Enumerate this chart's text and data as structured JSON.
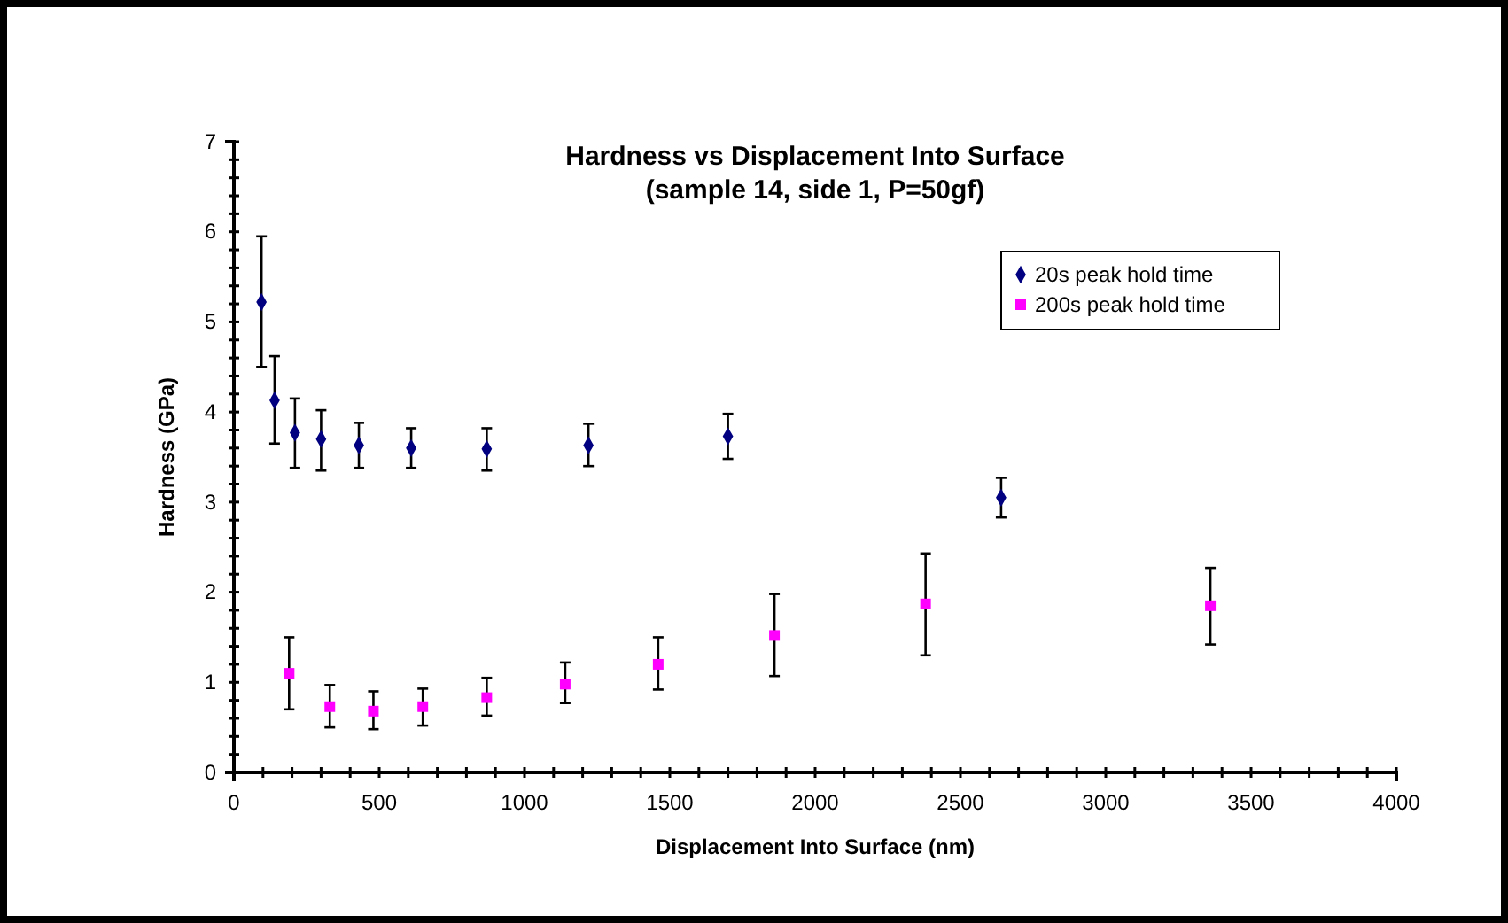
{
  "chart_data": {
    "type": "scatter",
    "title": "Hardness vs Displacement Into Surface",
    "subtitle": "(sample 14, side 1, P=50gf)",
    "xlabel": "Displacement Into Surface (nm)",
    "ylabel": "Hardness (GPa)",
    "xlim": [
      0,
      4000
    ],
    "ylim": [
      0,
      7
    ],
    "xticks": [
      0,
      {
        "value": 100,
        "label": null
      },
      {
        "value": 200,
        "label": null
      },
      {
        "value": 300,
        "label": null
      },
      {
        "value": 400,
        "label": null
      },
      500,
      {
        "value": 600,
        "label": null
      },
      {
        "value": 700,
        "label": null
      },
      {
        "value": 800,
        "label": null
      },
      {
        "value": 900,
        "label": null
      },
      1000,
      {
        "value": 1100,
        "label": null
      },
      {
        "value": 1200,
        "label": null
      },
      {
        "value": 1300,
        "label": null
      },
      {
        "value": 1400,
        "label": null
      },
      1500,
      {
        "value": 1600,
        "label": null
      },
      {
        "value": 1700,
        "label": null
      },
      {
        "value": 1800,
        "label": null
      },
      {
        "value": 1900,
        "label": null
      },
      2000,
      {
        "value": 2100,
        "label": null
      },
      {
        "value": 2200,
        "label": null
      },
      {
        "value": 2300,
        "label": null
      },
      {
        "value": 2400,
        "label": null
      },
      2500,
      {
        "value": 2600,
        "label": null
      },
      {
        "value": 2700,
        "label": null
      },
      {
        "value": 2800,
        "label": null
      },
      {
        "value": 2900,
        "label": null
      },
      3000,
      {
        "value": 3100,
        "label": null
      },
      {
        "value": 3200,
        "label": null
      },
      {
        "value": 3300,
        "label": null
      },
      {
        "value": 3400,
        "label": null
      },
      3500,
      {
        "value": 3600,
        "label": null
      },
      {
        "value": 3700,
        "label": null
      },
      {
        "value": 3800,
        "label": null
      },
      {
        "value": 3900,
        "label": null
      },
      4000
    ],
    "yticks": [
      0,
      {
        "value": 0.2,
        "label": null
      },
      {
        "value": 0.4,
        "label": null
      },
      {
        "value": 0.6,
        "label": null
      },
      {
        "value": 0.8,
        "label": null
      },
      1,
      {
        "value": 1.2,
        "label": null
      },
      {
        "value": 1.4,
        "label": null
      },
      {
        "value": 1.6,
        "label": null
      },
      {
        "value": 1.8,
        "label": null
      },
      2,
      {
        "value": 2.2,
        "label": null
      },
      {
        "value": 2.4,
        "label": null
      },
      {
        "value": 2.6,
        "label": null
      },
      {
        "value": 2.8,
        "label": null
      },
      3,
      {
        "value": 3.2,
        "label": null
      },
      {
        "value": 3.4,
        "label": null
      },
      {
        "value": 3.6,
        "label": null
      },
      {
        "value": 3.8,
        "label": null
      },
      4,
      {
        "value": 4.2,
        "label": null
      },
      {
        "value": 4.4,
        "label": null
      },
      {
        "value": 4.6,
        "label": null
      },
      {
        "value": 4.8,
        "label": null
      },
      5,
      {
        "value": 5.2,
        "label": null
      },
      {
        "value": 5.4,
        "label": null
      },
      {
        "value": 5.6,
        "label": null
      },
      {
        "value": 5.8,
        "label": null
      },
      6,
      {
        "value": 6.2,
        "label": null
      },
      {
        "value": 6.4,
        "label": null
      },
      {
        "value": 6.6,
        "label": null
      },
      {
        "value": 6.8,
        "label": null
      },
      7
    ],
    "legend": "top right",
    "series": [
      {
        "name": "20s peak hold time",
        "color": "#000080",
        "marker": "diamond",
        "x": [
          95,
          140,
          210,
          300,
          430,
          610,
          870,
          1220,
          1700,
          2640
        ],
        "values": [
          5.22,
          4.13,
          3.77,
          3.7,
          3.63,
          3.6,
          3.59,
          3.63,
          3.73,
          3.05
        ],
        "errors": [
          [
            4.5,
            5.95
          ],
          [
            3.65,
            4.62
          ],
          [
            3.38,
            4.15
          ],
          [
            3.35,
            4.02
          ],
          [
            3.38,
            3.88
          ],
          [
            3.38,
            3.82
          ],
          [
            3.35,
            3.82
          ],
          [
            3.4,
            3.87
          ],
          [
            3.48,
            3.98
          ],
          [
            2.83,
            3.27
          ]
        ]
      },
      {
        "name": "200s peak hold time",
        "color": "#ff00ff",
        "marker": "square",
        "x": [
          190,
          330,
          480,
          650,
          870,
          1140,
          1460,
          1860,
          2380,
          3360
        ],
        "values": [
          1.1,
          0.73,
          0.68,
          0.73,
          0.83,
          0.98,
          1.2,
          1.52,
          1.87,
          1.85
        ],
        "errors": [
          [
            0.7,
            1.5
          ],
          [
            0.5,
            0.97
          ],
          [
            0.48,
            0.9
          ],
          [
            0.52,
            0.93
          ],
          [
            0.63,
            1.05
          ],
          [
            0.77,
            1.22
          ],
          [
            0.92,
            1.5
          ],
          [
            1.07,
            1.98
          ],
          [
            1.3,
            2.43
          ],
          [
            1.42,
            2.27
          ]
        ]
      }
    ]
  }
}
